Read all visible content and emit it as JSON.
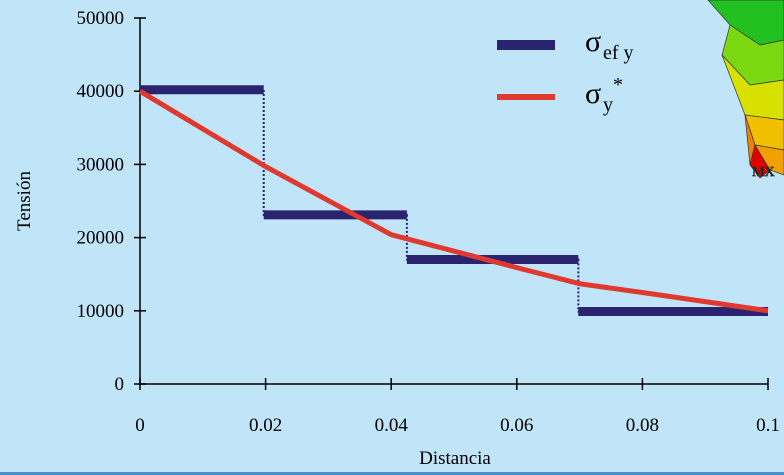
{
  "chart_data": {
    "type": "line",
    "x_label": "Distancia",
    "y_label": "Tensión",
    "xlim": [
      0,
      0.1
    ],
    "xticks": [
      0,
      0.02,
      0.04,
      0.06,
      0.08,
      0.1
    ],
    "ylim": [
      0,
      50000
    ],
    "yticks": [
      0,
      10000,
      20000,
      30000,
      40000,
      50000
    ],
    "series": [
      {
        "name": {
          "symbol": "σ",
          "sub": "ef y"
        },
        "color": "#2a2370",
        "style": "step",
        "x": [
          0,
          0.0197,
          0.0197,
          0.0425,
          0.0425,
          0.0698,
          0.0698,
          0.1
        ],
        "values": [
          40200,
          40200,
          23100,
          23100,
          17000,
          17000,
          9900,
          9900
        ]
      },
      {
        "name": {
          "symbol": "σ",
          "sub": "y",
          "sup": "*"
        },
        "color": "#e03a30",
        "style": "line",
        "x": [
          0,
          0.02,
          0.04,
          0.06,
          0.07,
          0.08,
          0.1
        ],
        "values": [
          40000,
          29700,
          20400,
          15900,
          13700,
          12500,
          10000
        ]
      }
    ]
  }
}
